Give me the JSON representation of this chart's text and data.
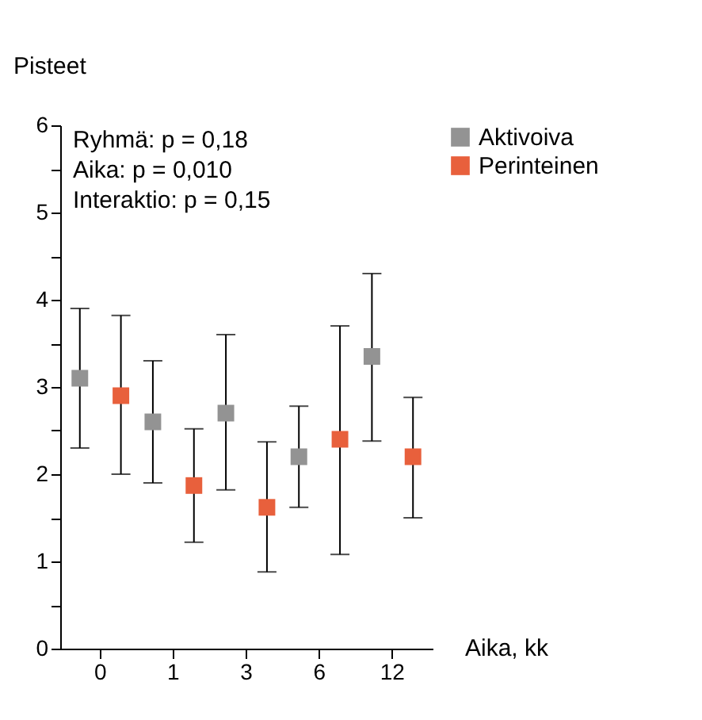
{
  "chart_data": {
    "type": "scatter",
    "ylabel": "Pisteet",
    "xlabel": "Aika, kk",
    "categories": [
      "0",
      "1",
      "3",
      "6",
      "12"
    ],
    "ylim": [
      0,
      6
    ],
    "yticks": [
      0,
      {
        "value": 0.5,
        "label": null
      },
      1,
      {
        "value": 1.5,
        "label": null
      },
      2,
      {
        "value": 2.5,
        "label": null
      },
      3,
      {
        "value": 3.5,
        "label": null
      },
      4,
      {
        "value": 4.5,
        "label": null
      },
      5,
      {
        "value": 5.5,
        "label": null
      },
      6
    ],
    "marker": "square",
    "legend": "right",
    "grid": false,
    "annotations": [
      "Ryhmä: p = 0,18",
      "Aika: p = 0,010",
      "Interaktio: p = 0,15"
    ],
    "series": [
      {
        "name": "Aktivoiva",
        "color": "#939393",
        "values": [
          3.1,
          2.6,
          2.7,
          2.2,
          3.35
        ],
        "errors": [
          [
            2.3,
            3.9
          ],
          [
            1.9,
            3.3
          ],
          [
            1.82,
            3.6
          ],
          [
            1.62,
            2.78
          ],
          [
            2.38,
            4.3
          ]
        ]
      },
      {
        "name": "Perinteinen",
        "color": "#e8603c",
        "values": [
          2.9,
          1.87,
          1.62,
          2.4,
          2.2
        ],
        "errors": [
          [
            2.0,
            3.82
          ],
          [
            1.22,
            2.52
          ],
          [
            0.88,
            2.37
          ],
          [
            1.08,
            3.7
          ],
          [
            1.5,
            2.88
          ]
        ]
      }
    ]
  }
}
